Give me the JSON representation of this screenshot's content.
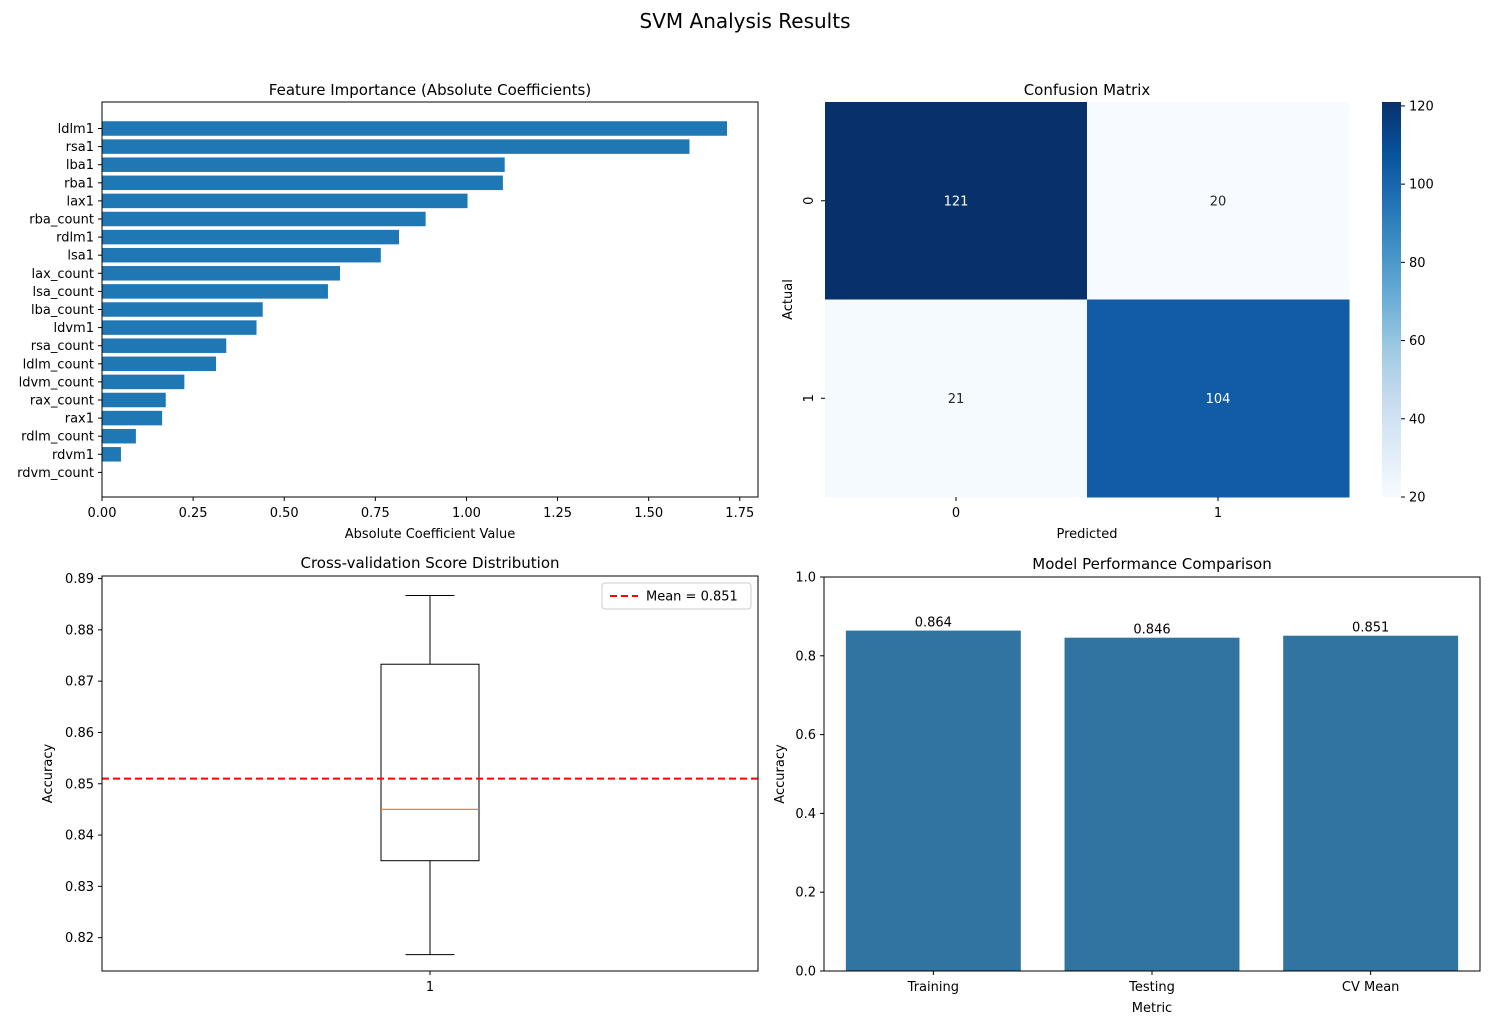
{
  "suptitle": "SVM Analysis Results",
  "chart_data": [
    {
      "type": "bar",
      "orientation": "horizontal",
      "title": "Feature Importance (Absolute Coefficients)",
      "xlabel": "Absolute Coefficient Value",
      "ylabel": "",
      "xlim": [
        0,
        1.8
      ],
      "xticks": [
        "0.00",
        "0.25",
        "0.50",
        "0.75",
        "1.00",
        "1.25",
        "1.50",
        "1.75"
      ],
      "categories": [
        "ldlm1",
        "rsa1",
        "lba1",
        "rba1",
        "lax1",
        "rba_count",
        "rdlm1",
        "lsa1",
        "lax_count",
        "lsa_count",
        "lba_count",
        "ldvm1",
        "rsa_count",
        "ldlm_count",
        "ldvm_count",
        "rax_count",
        "rax1",
        "rdlm_count",
        "rdvm1",
        "rdvm_count"
      ],
      "values": [
        1.715,
        1.612,
        1.105,
        1.1,
        1.003,
        0.888,
        0.815,
        0.765,
        0.653,
        0.62,
        0.441,
        0.424,
        0.341,
        0.313,
        0.226,
        0.175,
        0.165,
        0.093,
        0.052,
        0.0
      ],
      "color": "#1f77b4"
    },
    {
      "type": "heatmap",
      "title": "Confusion Matrix",
      "xlabel": "Predicted",
      "ylabel": "Actual",
      "x_labels": [
        "0",
        "1"
      ],
      "y_labels": [
        "0",
        "1"
      ],
      "values": [
        [
          121,
          20
        ],
        [
          21,
          104
        ]
      ],
      "colormap": "Blues",
      "colorbar_range": [
        20,
        121
      ],
      "colorbar_ticks": [
        "20",
        "40",
        "60",
        "80",
        "100",
        "120"
      ]
    },
    {
      "type": "box",
      "title": "Cross-validation Score Distribution",
      "xlabel": "",
      "ylabel": "Accuracy",
      "ylim": [
        0.8135,
        0.8905
      ],
      "yticks": [
        "0.82",
        "0.83",
        "0.84",
        "0.85",
        "0.86",
        "0.87",
        "0.88",
        "0.89"
      ],
      "x_labels": [
        "1"
      ],
      "box": {
        "whisker_low": 0.8167,
        "q1": 0.835,
        "median": 0.845,
        "q3": 0.8733,
        "whisker_high": 0.8867
      },
      "mean_line": {
        "value": 0.851,
        "label": "Mean = 0.851",
        "color": "#ff0000"
      },
      "legend_position": "upper-right",
      "median_color": "#ff7f0e"
    },
    {
      "type": "bar",
      "title": "Model Performance Comparison",
      "xlabel": "Metric",
      "ylabel": "Accuracy",
      "ylim": [
        0,
        1.0
      ],
      "yticks": [
        "0.0",
        "0.2",
        "0.4",
        "0.6",
        "0.8",
        "1.0"
      ],
      "categories": [
        "Training",
        "Testing",
        "CV Mean"
      ],
      "values": [
        0.864,
        0.846,
        0.851
      ],
      "value_labels": [
        "0.864",
        "0.846",
        "0.851"
      ],
      "color": "#3274a1"
    }
  ]
}
